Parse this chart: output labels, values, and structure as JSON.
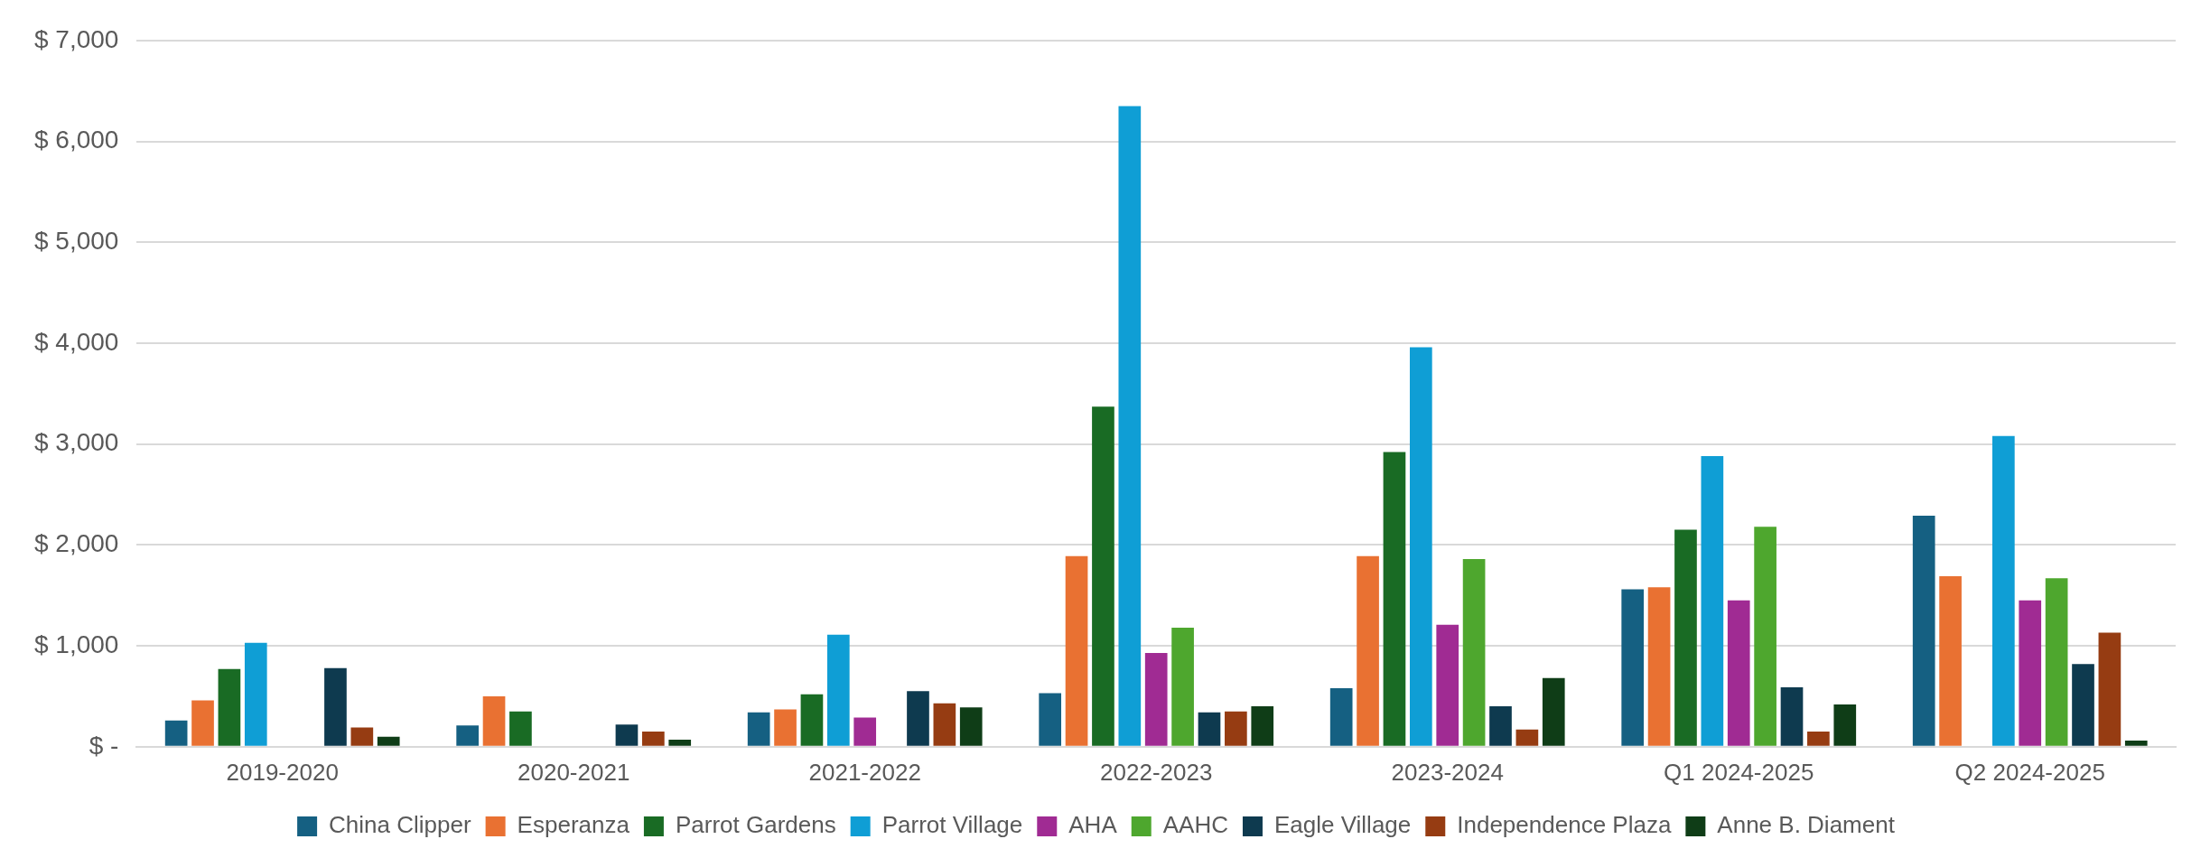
{
  "chart_data": {
    "type": "bar",
    "categories": [
      "2019-2020",
      "2020-2021",
      "2021-2022",
      "2022-2023",
      "2023-2024",
      "Q1 2024-2025",
      "Q2 2024-2025"
    ],
    "series": [
      {
        "name": "China Clipper",
        "color": "#156082",
        "values": [
          260,
          210,
          340,
          530,
          580,
          1560,
          2290
        ]
      },
      {
        "name": "Esperanza",
        "color": "#e97132",
        "values": [
          460,
          500,
          370,
          1890,
          1890,
          1580,
          1690
        ]
      },
      {
        "name": "Parrot Gardens",
        "color": "#196b24",
        "values": [
          770,
          350,
          520,
          3370,
          2920,
          2150,
          null
        ]
      },
      {
        "name": "Parrot Village",
        "color": "#0f9ed5",
        "values": [
          1030,
          null,
          1110,
          6350,
          3960,
          2880,
          3080
        ]
      },
      {
        "name": "AHA",
        "color": "#a02b93",
        "values": [
          null,
          null,
          290,
          930,
          1210,
          1450,
          1450
        ]
      },
      {
        "name": "AAHC",
        "color": "#4ea72e",
        "values": [
          null,
          null,
          null,
          1180,
          1860,
          2180,
          1670
        ]
      },
      {
        "name": "Eagle Village",
        "color": "#0e3a4f",
        "values": [
          780,
          220,
          550,
          340,
          400,
          590,
          820
        ]
      },
      {
        "name": "Independence Plaza",
        "color": "#963c12",
        "values": [
          190,
          150,
          430,
          350,
          170,
          150,
          1130
        ]
      },
      {
        "name": "Anne B. Diament",
        "color": "#0f3d17",
        "values": [
          100,
          70,
          390,
          400,
          680,
          420,
          60
        ]
      }
    ],
    "ylim": [
      0,
      7000
    ],
    "yticks": [
      {
        "value": 0,
        "label": "$ -"
      },
      {
        "value": 1000,
        "label": "$ 1,000"
      },
      {
        "value": 2000,
        "label": "$ 2,000"
      },
      {
        "value": 3000,
        "label": "$ 3,000"
      },
      {
        "value": 4000,
        "label": "$ 4,000"
      },
      {
        "value": 5000,
        "label": "$ 5,000"
      },
      {
        "value": 6000,
        "label": "$ 6,000"
      },
      {
        "value": 7000,
        "label": "$ 7,000"
      }
    ],
    "grid": "y",
    "legend": "bottom"
  }
}
